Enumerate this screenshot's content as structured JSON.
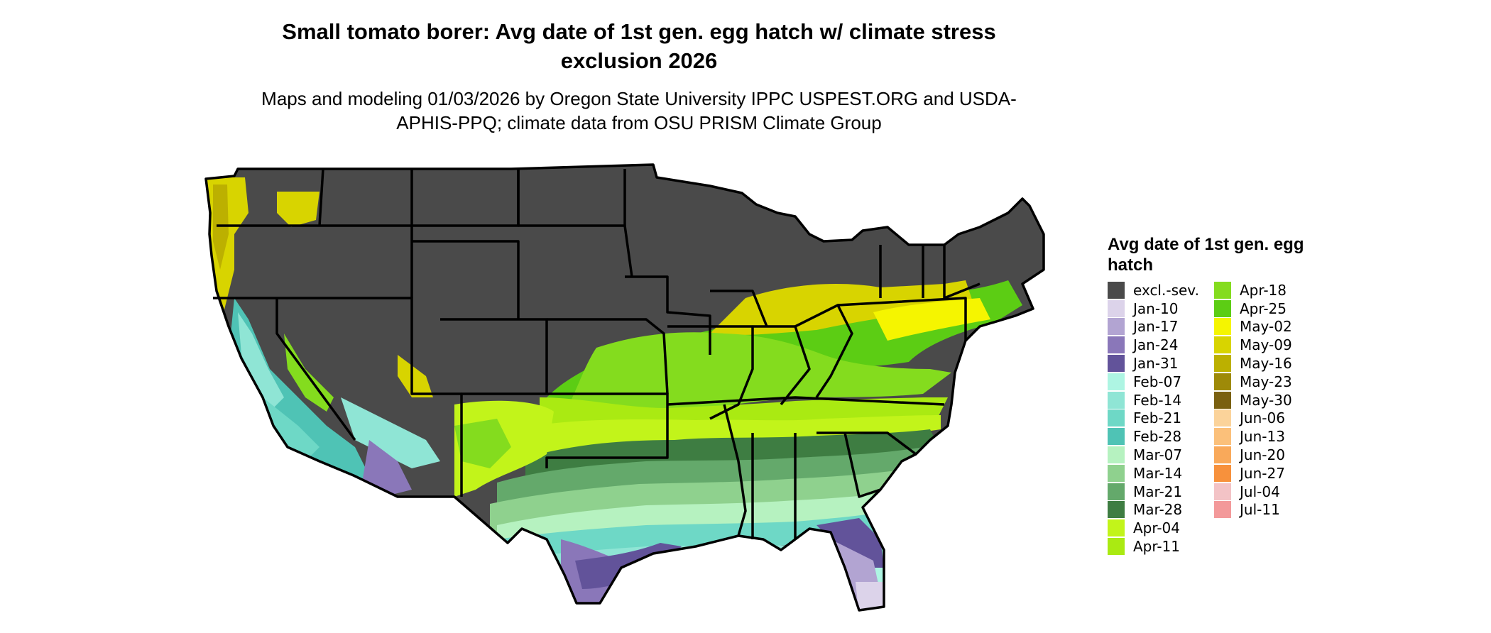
{
  "title": "Small tomato borer: Avg date of 1st gen. egg hatch w/ climate stress exclusion 2026",
  "subtitle": "Maps and modeling 01/03/2026 by Oregon State University IPPC USPEST.ORG and USDA-APHIS-PPQ; climate data from OSU PRISM Climate Group",
  "legend": {
    "title": "Avg date of 1st gen. egg hatch",
    "items": [
      {
        "label": "excl.-sev.",
        "color": "#4a4a4a"
      },
      {
        "label": "Jan-10",
        "color": "#dcd3ea"
      },
      {
        "label": "Jan-17",
        "color": "#b2a4d2"
      },
      {
        "label": "Jan-24",
        "color": "#8a77b9"
      },
      {
        "label": "Jan-31",
        "color": "#62539a"
      },
      {
        "label": "Feb-07",
        "color": "#aef5e3"
      },
      {
        "label": "Feb-14",
        "color": "#8fe5d5"
      },
      {
        "label": "Feb-21",
        "color": "#6ed8c6"
      },
      {
        "label": "Feb-28",
        "color": "#4fc3b5"
      },
      {
        "label": "Mar-07",
        "color": "#b6f2c0"
      },
      {
        "label": "Mar-14",
        "color": "#8fd18e"
      },
      {
        "label": "Mar-21",
        "color": "#64a96b"
      },
      {
        "label": "Mar-28",
        "color": "#3e7d42"
      },
      {
        "label": "Apr-04",
        "color": "#c2f41a"
      },
      {
        "label": "Apr-11",
        "color": "#aaea12"
      },
      {
        "label": "Apr-18",
        "color": "#84dc1e"
      },
      {
        "label": "Apr-25",
        "color": "#5ccd14"
      },
      {
        "label": "May-02",
        "color": "#f5f500"
      },
      {
        "label": "May-09",
        "color": "#d8d400"
      },
      {
        "label": "May-16",
        "color": "#bcb000"
      },
      {
        "label": "May-23",
        "color": "#9e8a08"
      },
      {
        "label": "May-30",
        "color": "#7a6010"
      },
      {
        "label": "Jun-06",
        "color": "#fbd39a"
      },
      {
        "label": "Jun-13",
        "color": "#fbc07a"
      },
      {
        "label": "Jun-20",
        "color": "#f9a95a"
      },
      {
        "label": "Jun-27",
        "color": "#f7913c"
      },
      {
        "label": "Jul-04",
        "color": "#f3c3c6"
      },
      {
        "label": "Jul-11",
        "color": "#f3999a"
      }
    ]
  }
}
